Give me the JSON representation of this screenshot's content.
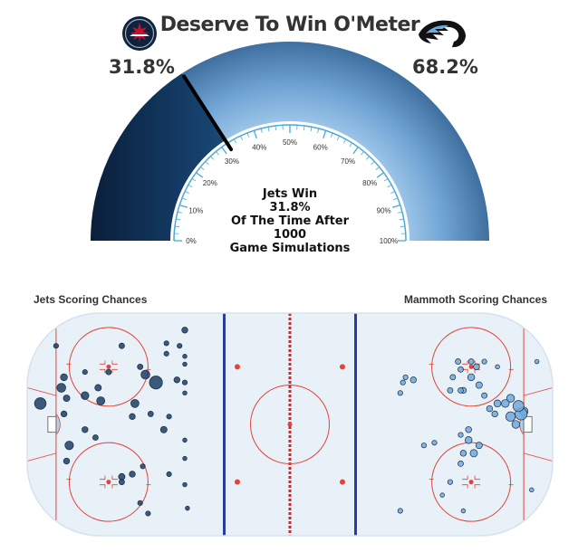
{
  "header": {
    "title": "Deserve To Win O'Meter",
    "left_team": {
      "name": "Jets",
      "win_pct_label": "31.8%",
      "logo_icon": "jets-logo-icon",
      "color": "#0c2340"
    },
    "right_team": {
      "name": "Mammoth",
      "win_pct_label": "68.2%",
      "logo_icon": "mammoth-logo-icon",
      "color": "#6cace4"
    }
  },
  "gauge": {
    "center_text": [
      "Jets Win",
      "31.8%",
      "Of The Time After",
      "1000",
      "Game Simulations"
    ]
  },
  "chart_data": [
    {
      "type": "gauge",
      "title": "Deserve To Win O'Meter",
      "value": 31.8,
      "range": [
        0,
        100
      ],
      "tick_labels": [
        "0%",
        "10%",
        "20%",
        "30%",
        "40%",
        "50%",
        "60%",
        "70%",
        "80%",
        "90%",
        "100%"
      ],
      "segments": [
        {
          "name": "Jets",
          "value": 31.8,
          "color": "#0a2442"
        },
        {
          "name": "Mammoth",
          "value": 68.2,
          "color": "#5b8fc4"
        }
      ]
    },
    {
      "type": "scatter",
      "left_title": "Jets Scoring Chances",
      "right_title": "Mammoth Scoring Chances",
      "series": [
        {
          "name": "Jets Scoring Chances",
          "color": "#1c3e66",
          "points": [
            {
              "x": -95,
              "y": 8,
              "size": 2.2
            },
            {
              "x": -89,
              "y": 30,
              "size": 0.4
            },
            {
              "x": -87,
              "y": 14,
              "size": 1.3
            },
            {
              "x": -86,
              "y": 18,
              "size": 0.8
            },
            {
              "x": -86,
              "y": 4,
              "size": 0.6
            },
            {
              "x": -85,
              "y": 10,
              "size": 0.7
            },
            {
              "x": -84,
              "y": -8,
              "size": 1.2
            },
            {
              "x": -85,
              "y": -14,
              "size": 0.6
            },
            {
              "x": -78,
              "y": 20,
              "size": 0.4
            },
            {
              "x": -78,
              "y": 11,
              "size": 1.0
            },
            {
              "x": -73,
              "y": 14,
              "size": 0.7
            },
            {
              "x": -72,
              "y": 9,
              "size": 1.1
            },
            {
              "x": -78,
              "y": -2,
              "size": 0.6
            },
            {
              "x": -74,
              "y": -5,
              "size": 0.5
            },
            {
              "x": -69,
              "y": 20,
              "size": 0.5
            },
            {
              "x": -64,
              "y": 30,
              "size": 0.5
            },
            {
              "x": -64,
              "y": -20,
              "size": 0.7
            },
            {
              "x": -64,
              "y": -22,
              "size": 0.5
            },
            {
              "x": -60,
              "y": 3,
              "size": 0.6
            },
            {
              "x": -60,
              "y": -19,
              "size": 0.6
            },
            {
              "x": -59,
              "y": 8,
              "size": 1.1
            },
            {
              "x": -57,
              "y": 22,
              "size": 0.5
            },
            {
              "x": -57,
              "y": -30,
              "size": 0.4
            },
            {
              "x": -56,
              "y": -16,
              "size": 0.4
            },
            {
              "x": -55,
              "y": 19,
              "size": 1.3
            },
            {
              "x": -53,
              "y": 4,
              "size": 0.5
            },
            {
              "x": -51,
              "y": 16,
              "size": 2.8
            },
            {
              "x": -54,
              "y": -34,
              "size": 0.4
            },
            {
              "x": -48,
              "y": -2,
              "size": 0.7
            },
            {
              "x": -47,
              "y": 31,
              "size": 0.4
            },
            {
              "x": -47,
              "y": 27,
              "size": 0.4
            },
            {
              "x": -46,
              "y": 3,
              "size": 0.4
            },
            {
              "x": -46,
              "y": -19,
              "size": 0.4
            },
            {
              "x": -43,
              "y": 17,
              "size": 0.6
            },
            {
              "x": -42,
              "y": 30,
              "size": 0.4
            },
            {
              "x": -40,
              "y": 36,
              "size": 0.6
            },
            {
              "x": -40,
              "y": 26,
              "size": 0.3
            },
            {
              "x": -40,
              "y": 23,
              "size": 0.3
            },
            {
              "x": -40,
              "y": 16,
              "size": 0.4
            },
            {
              "x": -40,
              "y": 12,
              "size": 0.3
            },
            {
              "x": -40,
              "y": -6,
              "size": 0.3
            },
            {
              "x": -40,
              "y": -13,
              "size": 0.3
            },
            {
              "x": -40,
              "y": -23,
              "size": 0.3
            },
            {
              "x": -39,
              "y": -32,
              "size": 0.3
            }
          ]
        },
        {
          "name": "Mammoth Scoring Chances",
          "color": "#6fa9df",
          "points": [
            {
              "x": 89,
              "y": 5,
              "size": 1.2
            },
            {
              "x": 88,
              "y": 4,
              "size": 2.4
            },
            {
              "x": 87,
              "y": 7,
              "size": 2.0
            },
            {
              "x": 84,
              "y": 3,
              "size": 1.5
            },
            {
              "x": 86,
              "y": 0,
              "size": 1.0
            },
            {
              "x": 84,
              "y": 10,
              "size": 1.0
            },
            {
              "x": 82,
              "y": 8,
              "size": 1.0
            },
            {
              "x": 79,
              "y": 8,
              "size": 0.8
            },
            {
              "x": 78,
              "y": 4,
              "size": 0.6
            },
            {
              "x": 76,
              "y": 6,
              "size": 0.6
            },
            {
              "x": 74,
              "y": 11,
              "size": 0.5
            },
            {
              "x": 72,
              "y": 15,
              "size": 0.7
            },
            {
              "x": 69,
              "y": 18,
              "size": 0.8
            },
            {
              "x": 71,
              "y": 22,
              "size": 0.6
            },
            {
              "x": 69,
              "y": 24,
              "size": 0.5
            },
            {
              "x": 66,
              "y": 13,
              "size": 0.6
            },
            {
              "x": 65,
              "y": 21,
              "size": 0.5
            },
            {
              "x": 65,
              "y": 13,
              "size": 0.5
            },
            {
              "x": 64,
              "y": 24,
              "size": 0.5
            },
            {
              "x": 61,
              "y": 13,
              "size": 0.5
            },
            {
              "x": 62,
              "y": 18,
              "size": 0.5
            },
            {
              "x": 74,
              "y": 24,
              "size": 0.4
            },
            {
              "x": 79,
              "y": 22,
              "size": 0.3
            },
            {
              "x": 68,
              "y": -2,
              "size": 0.6
            },
            {
              "x": 68,
              "y": -6,
              "size": 0.8
            },
            {
              "x": 72,
              "y": -8,
              "size": 0.7
            },
            {
              "x": 70,
              "y": -11,
              "size": 0.9
            },
            {
              "x": 66,
              "y": -11,
              "size": 0.6
            },
            {
              "x": 65,
              "y": -15,
              "size": 0.5
            },
            {
              "x": 65,
              "y": -4,
              "size": 0.4
            },
            {
              "x": 61,
              "y": -22,
              "size": 0.4
            },
            {
              "x": 55,
              "y": -7,
              "size": 0.4
            },
            {
              "x": 51,
              "y": -8,
              "size": 0.4
            },
            {
              "x": 47,
              "y": 17,
              "size": 0.6
            },
            {
              "x": 44,
              "y": 18,
              "size": 0.4
            },
            {
              "x": 43,
              "y": 16,
              "size": 0.4
            },
            {
              "x": 42,
              "y": 12,
              "size": 0.4
            },
            {
              "x": 42,
              "y": -33,
              "size": 0.4
            },
            {
              "x": 58,
              "y": -27,
              "size": 0.3
            },
            {
              "x": 66,
              "y": -33,
              "size": 0.3
            },
            {
              "x": 92,
              "y": -25,
              "size": 0.3
            },
            {
              "x": 94,
              "y": 24,
              "size": 0.3
            }
          ]
        }
      ]
    }
  ]
}
